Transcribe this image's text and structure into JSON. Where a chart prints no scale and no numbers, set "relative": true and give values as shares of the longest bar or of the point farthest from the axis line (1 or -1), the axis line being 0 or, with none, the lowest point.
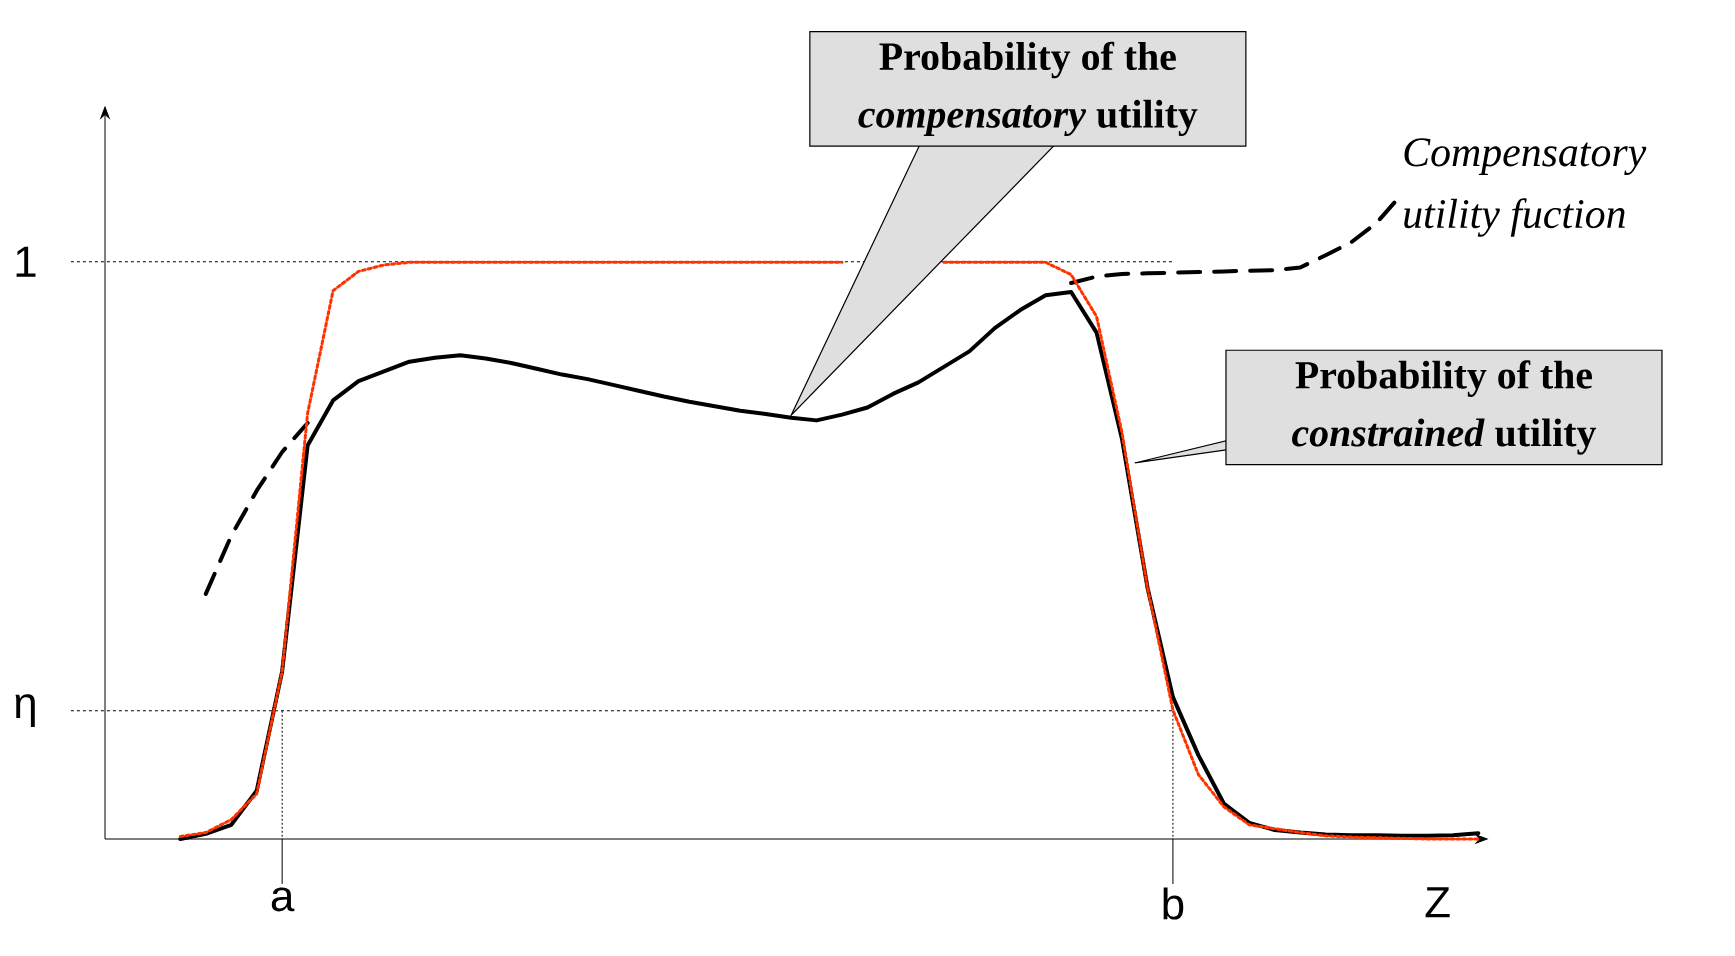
{
  "chart_data": {
    "type": "line",
    "relative": true,
    "xlabel": "Z",
    "legend": false,
    "grid": false,
    "categories": [
      null,
      null,
      null,
      null,
      null,
      "a",
      null,
      null,
      null,
      null,
      null,
      null,
      null,
      null,
      null,
      null,
      null,
      null,
      null,
      null,
      null,
      null,
      null,
      null,
      null,
      null,
      null,
      null,
      null,
      null,
      null,
      null,
      null,
      null,
      null,
      null,
      null,
      null,
      null,
      null,
      "b",
      null,
      null,
      null,
      null,
      null,
      null,
      null,
      null,
      null,
      null,
      null,
      null
    ],
    "series": [
      {
        "color": "#ff3300",
        "line_style": "dotted",
        "values": [
          null,
          0.004,
          0.01,
          0.03,
          0.07,
          0.26,
          0.66,
          0.85,
          0.88,
          0.89,
          0.894,
          0.894,
          0.894,
          0.894,
          0.894,
          0.894,
          0.894,
          0.894,
          0.894,
          0.894,
          0.894,
          0.894,
          0.894,
          0.894,
          0.894,
          0.894,
          0.894,
          0.894,
          null,
          null,
          null,
          0.894,
          0.894,
          0.894,
          0.894,
          0.894,
          0.875,
          0.81,
          0.63,
          0.39,
          0.2,
          0.1,
          0.05,
          0.022,
          0.016,
          0.01,
          0.005,
          0.003,
          0.002,
          0.001,
          0,
          0,
          0
        ]
      },
      {
        "color": "#000000",
        "line_style": "solid",
        "values": [
          null,
          0,
          0.008,
          0.022,
          0.075,
          0.26,
          0.61,
          0.68,
          0.71,
          0.725,
          0.74,
          0.746,
          0.75,
          0.745,
          0.738,
          0.729,
          0.72,
          0.713,
          0.704,
          0.695,
          0.686,
          0.678,
          0.671,
          0.664,
          0.659,
          0.653,
          0.649,
          0.658,
          0.669,
          0.69,
          0.708,
          0.732,
          0.756,
          0.792,
          0.82,
          0.843,
          0.848,
          0.785,
          0.62,
          0.39,
          0.22,
          0.13,
          0.055,
          0.025,
          0.014,
          0.01,
          0.007,
          0.006,
          0.006,
          0.005,
          0.005,
          0.006,
          0.009
        ]
      },
      {
        "color": "#000000",
        "line_style": "dashed",
        "values": [
          null,
          null,
          0.38,
          0.47,
          0.54,
          0.6,
          0.645,
          null,
          null,
          null,
          null,
          null,
          null,
          null,
          null,
          null,
          null,
          null,
          null,
          null,
          null,
          null,
          null,
          null,
          null,
          null,
          null,
          null,
          null,
          null,
          null,
          null,
          null,
          null,
          null,
          null,
          0.862,
          0.872,
          0.876,
          0.877,
          0.878,
          0.879,
          0.88,
          0.881,
          0.882,
          0.886,
          0.905,
          0.925,
          0.955,
          1.0,
          null,
          null,
          null
        ]
      }
    ],
    "ref_lines": [
      {
        "axis": "y",
        "value": 0.895,
        "label": "1",
        "line_style": "dotted"
      },
      {
        "axis": "y",
        "value": 0.199,
        "label": "η",
        "line_style": "dotted"
      },
      {
        "axis": "x",
        "value": "a",
        "line_style": "dotted"
      },
      {
        "axis": "x",
        "value": "b",
        "line_style": "dotted"
      }
    ],
    "annotations": [
      "Probability of the *compensatory* utility",
      "Probability of the *constrained* utility",
      "Compensatory utility fuction"
    ]
  }
}
